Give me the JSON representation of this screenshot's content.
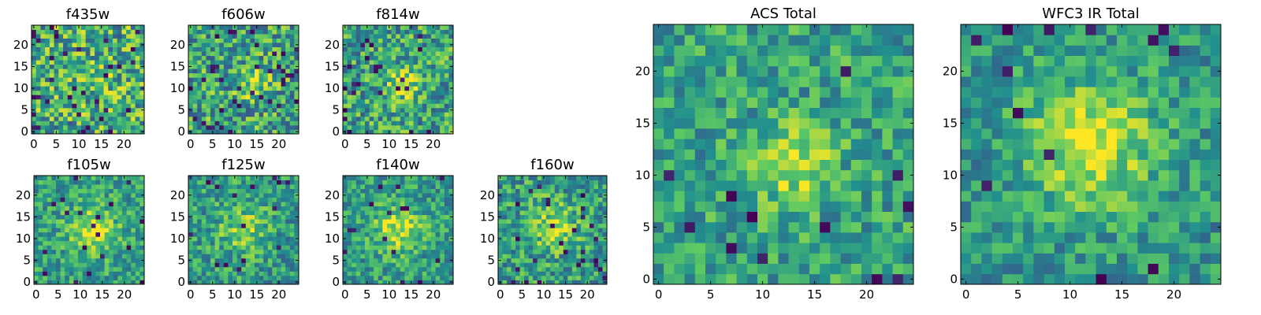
{
  "figure": {
    "colormap": [
      "#440154",
      "#3b528b",
      "#21908d",
      "#5dc963",
      "#fde725"
    ]
  },
  "chart_data": [
    {
      "type": "heatmap",
      "title": "f435w",
      "grid": 25,
      "xticks": [
        0,
        5,
        10,
        15,
        20
      ],
      "yticks": [
        0,
        5,
        10,
        15,
        20
      ],
      "xlim": [
        -0.5,
        24.5
      ],
      "ylim": [
        -0.5,
        24.5
      ],
      "seed": 11,
      "mean": 0.62,
      "noise": 0.34,
      "peak": [
        14,
        12
      ],
      "peak_amp": 0.08,
      "peak_sigma": 3,
      "dark_fraction": 0.05
    },
    {
      "type": "heatmap",
      "title": "f606w",
      "grid": 25,
      "xticks": [
        0,
        5,
        10,
        15,
        20
      ],
      "yticks": [
        0,
        5,
        10,
        15,
        20
      ],
      "xlim": [
        -0.5,
        24.5
      ],
      "ylim": [
        -0.5,
        24.5
      ],
      "seed": 23,
      "mean": 0.58,
      "noise": 0.32,
      "peak": [
        14,
        11
      ],
      "peak_amp": 0.25,
      "peak_sigma": 2.5,
      "dark_fraction": 0.05
    },
    {
      "type": "heatmap",
      "title": "f814w",
      "grid": 25,
      "xticks": [
        0,
        5,
        10,
        15,
        20
      ],
      "yticks": [
        0,
        5,
        10,
        15,
        20
      ],
      "xlim": [
        -0.5,
        24.5
      ],
      "ylim": [
        -0.5,
        24.5
      ],
      "seed": 37,
      "mean": 0.58,
      "noise": 0.3,
      "peak": [
        13,
        11
      ],
      "peak_amp": 0.32,
      "peak_sigma": 2.5,
      "dark_fraction": 0.04
    },
    {
      "type": "heatmap",
      "title": "f105w",
      "grid": 25,
      "xticks": [
        0,
        5,
        10,
        15,
        20
      ],
      "yticks": [
        0,
        5,
        10,
        15,
        20
      ],
      "xlim": [
        -0.5,
        24.5
      ],
      "ylim": [
        -0.5,
        24.5
      ],
      "seed": 41,
      "mean": 0.56,
      "noise": 0.22,
      "peak": [
        13,
        12
      ],
      "peak_amp": 0.32,
      "peak_sigma": 4,
      "dark_fraction": 0.03
    },
    {
      "type": "heatmap",
      "title": "f125w",
      "grid": 25,
      "xticks": [
        0,
        5,
        10,
        15,
        20
      ],
      "yticks": [
        0,
        5,
        10,
        15,
        20
      ],
      "xlim": [
        -0.5,
        24.5
      ],
      "ylim": [
        -0.5,
        24.5
      ],
      "seed": 53,
      "mean": 0.55,
      "noise": 0.24,
      "peak": [
        12,
        12
      ],
      "peak_amp": 0.25,
      "peak_sigma": 4,
      "dark_fraction": 0.03
    },
    {
      "type": "heatmap",
      "title": "f140w",
      "grid": 25,
      "xticks": [
        0,
        5,
        10,
        15,
        20
      ],
      "yticks": [
        0,
        5,
        10,
        15,
        20
      ],
      "xlim": [
        -0.5,
        24.5
      ],
      "ylim": [
        -0.5,
        24.5
      ],
      "seed": 67,
      "mean": 0.55,
      "noise": 0.22,
      "peak": [
        12,
        12
      ],
      "peak_amp": 0.35,
      "peak_sigma": 4,
      "dark_fraction": 0.02
    },
    {
      "type": "heatmap",
      "title": "f160w",
      "grid": 25,
      "xticks": [
        0,
        5,
        10,
        15,
        20
      ],
      "yticks": [
        0,
        5,
        10,
        15,
        20
      ],
      "xlim": [
        -0.5,
        24.5
      ],
      "ylim": [
        -0.5,
        24.5
      ],
      "seed": 79,
      "mean": 0.55,
      "noise": 0.26,
      "peak": [
        12,
        13
      ],
      "peak_amp": 0.28,
      "peak_sigma": 4,
      "dark_fraction": 0.05
    },
    {
      "type": "heatmap",
      "title": "ACS Total",
      "grid": 25,
      "xticks": [
        0,
        5,
        10,
        15,
        20
      ],
      "yticks": [
        0,
        5,
        10,
        15,
        20
      ],
      "xlim": [
        -0.5,
        24.5
      ],
      "ylim": [
        -0.5,
        24.5
      ],
      "seed": 83,
      "mean": 0.58,
      "noise": 0.22,
      "peak": [
        13,
        11
      ],
      "peak_amp": 0.35,
      "peak_sigma": 2.5,
      "dark_fraction": 0.02
    },
    {
      "type": "heatmap",
      "title": "WFC3 IR Total",
      "grid": 25,
      "xticks": [
        0,
        5,
        10,
        15,
        20
      ],
      "yticks": [
        0,
        5,
        10,
        15,
        20
      ],
      "xlim": [
        -0.5,
        24.5
      ],
      "ylim": [
        -0.5,
        24.5
      ],
      "seed": 97,
      "mean": 0.52,
      "noise": 0.2,
      "peak": [
        12,
        13
      ],
      "peak_amp": 0.4,
      "peak_sigma": 4.5,
      "dark_fraction": 0.02
    }
  ]
}
